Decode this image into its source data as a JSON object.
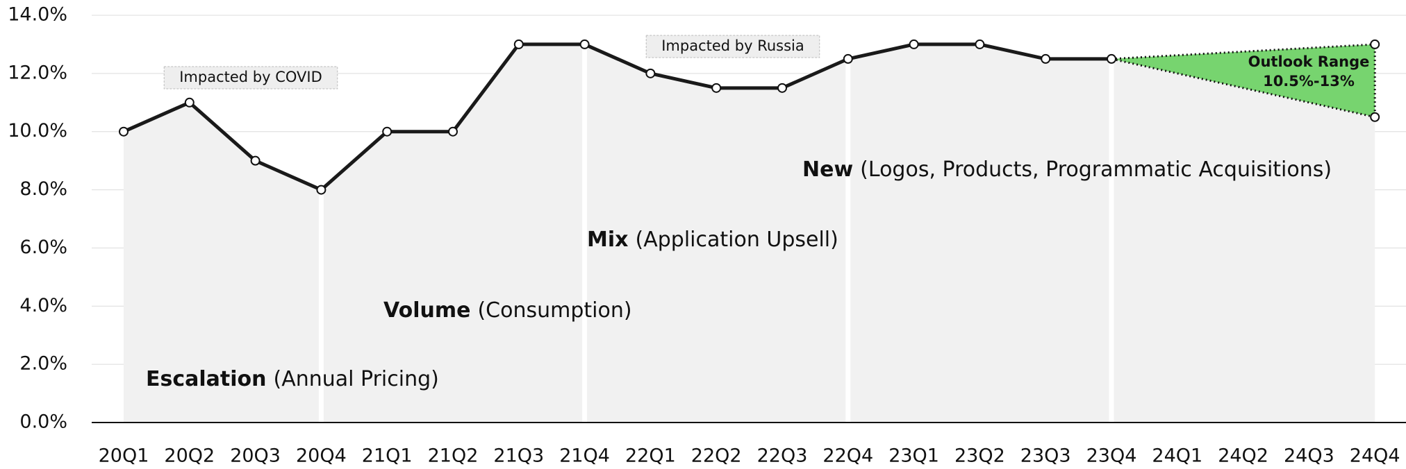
{
  "chart_data": {
    "type": "line",
    "categories": [
      "20Q1",
      "20Q2",
      "20Q3",
      "20Q4",
      "21Q1",
      "21Q2",
      "21Q3",
      "21Q4",
      "22Q1",
      "22Q2",
      "22Q3",
      "22Q4",
      "23Q1",
      "23Q2",
      "23Q3",
      "23Q4",
      "24Q1",
      "24Q2",
      "24Q3",
      "24Q4"
    ],
    "series": [
      {
        "color": "#1a1a1a",
        "values": [
          10,
          11,
          9,
          8,
          10,
          10,
          13,
          13,
          12,
          11.5,
          11.5,
          12.5,
          13,
          13,
          12.5,
          12.5,
          null,
          null,
          null,
          null
        ]
      }
    ],
    "outlook": {
      "label": "Outlook Range",
      "range_label": "10.5%-13%",
      "low": 10.5,
      "high": 13,
      "color": "#77d46f"
    },
    "ylim": [
      0,
      14
    ],
    "yticks": [
      {
        "value": 0,
        "label": "0.0%"
      },
      {
        "value": 2,
        "label": "2.0%"
      },
      {
        "value": 4,
        "label": "4.0%"
      },
      {
        "value": 6,
        "label": "6.0%"
      },
      {
        "value": 8,
        "label": "8.0%"
      },
      {
        "value": 10,
        "label": "10.0%"
      },
      {
        "value": 12,
        "label": "12.0%"
      },
      {
        "value": 14,
        "label": "14.0%"
      }
    ],
    "grid": true,
    "annotations": [
      "Impacted by COVID",
      "Impacted by Russia"
    ],
    "phases": [
      {
        "name": "Escalation",
        "detail": "(Annual Pricing)"
      },
      {
        "name": "Volume",
        "detail": "(Consumption)"
      },
      {
        "name": "Mix",
        "detail": "(Application Upsell)"
      },
      {
        "name": "New",
        "detail": "(Logos, Products, Programmatic Acquisitions)"
      }
    ]
  }
}
